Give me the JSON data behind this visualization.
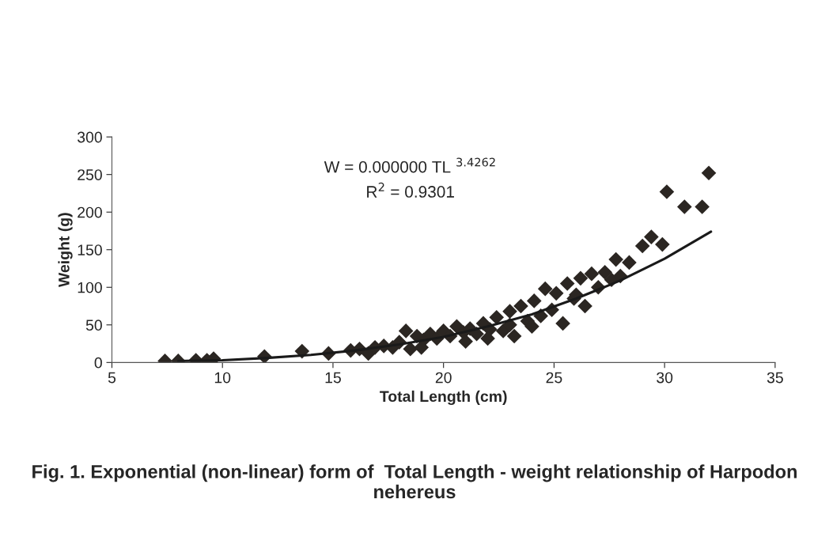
{
  "chart_data": {
    "type": "scatter",
    "title": "Fig. 1. Exponential (non-linear) form of  Total Length - weight relationship of Harpodon nehereus",
    "xlabel": "Total Length (cm)",
    "ylabel": "Weight (g)",
    "annotations": [
      "W = 0.000000 TL $^{3.4262}$",
      "R$^{2}$ = 0.9301"
    ],
    "xlim": [
      5,
      35
    ],
    "ylim": [
      0,
      300
    ],
    "xticks": [
      5,
      10,
      15,
      20,
      25,
      30,
      35
    ],
    "yticks": [
      0,
      50,
      100,
      150,
      200,
      250,
      300
    ],
    "grid": false,
    "legend": false,
    "series": [
      {
        "marker": "diamond",
        "color": "#2b2622",
        "x": [
          7.4,
          8.0,
          8.8,
          9.3,
          9.6,
          11.9,
          13.6,
          14.8,
          15.8,
          16.2,
          16.6,
          16.9,
          17.3,
          17.7,
          18.0,
          18.3,
          18.5,
          18.8,
          19.1,
          19.4,
          19.7,
          20.0,
          20.3,
          20.6,
          20.9,
          21.2,
          21.5,
          21.8,
          22.1,
          22.4,
          22.7,
          23.0,
          23.2,
          23.5,
          23.8,
          24.1,
          24.4,
          24.6,
          24.9,
          25.1,
          25.4,
          25.6,
          25.9,
          26.2,
          26.4,
          26.7,
          27.0,
          27.3,
          27.6,
          27.8,
          28.0,
          28.4,
          29.0,
          29.4,
          29.9,
          30.1,
          30.9,
          31.7,
          32.0,
          19.0,
          21.0,
          23.0,
          24.0,
          26.0,
          22.0
        ],
        "values": [
          2,
          2,
          3,
          3,
          5,
          8,
          15,
          12,
          16,
          18,
          12,
          20,
          22,
          20,
          27,
          42,
          18,
          35,
          30,
          38,
          32,
          42,
          35,
          48,
          40,
          45,
          38,
          52,
          44,
          60,
          42,
          68,
          35,
          75,
          55,
          82,
          62,
          98,
          70,
          92,
          52,
          105,
          85,
          112,
          75,
          118,
          100,
          120,
          110,
          137,
          115,
          133,
          155,
          167,
          157,
          227,
          207,
          207,
          252,
          20,
          28,
          50,
          48,
          90,
          32
        ]
      },
      {
        "type": "line",
        "marker": "none",
        "color": "#1a1a1a",
        "x": [
          8,
          10,
          12,
          14,
          16,
          18,
          20,
          22,
          24,
          26,
          28,
          30,
          32.1
        ],
        "values": [
          2,
          3,
          6,
          10,
          16,
          24,
          34,
          48,
          64,
          85,
          109,
          138,
          174
        ]
      }
    ]
  }
}
